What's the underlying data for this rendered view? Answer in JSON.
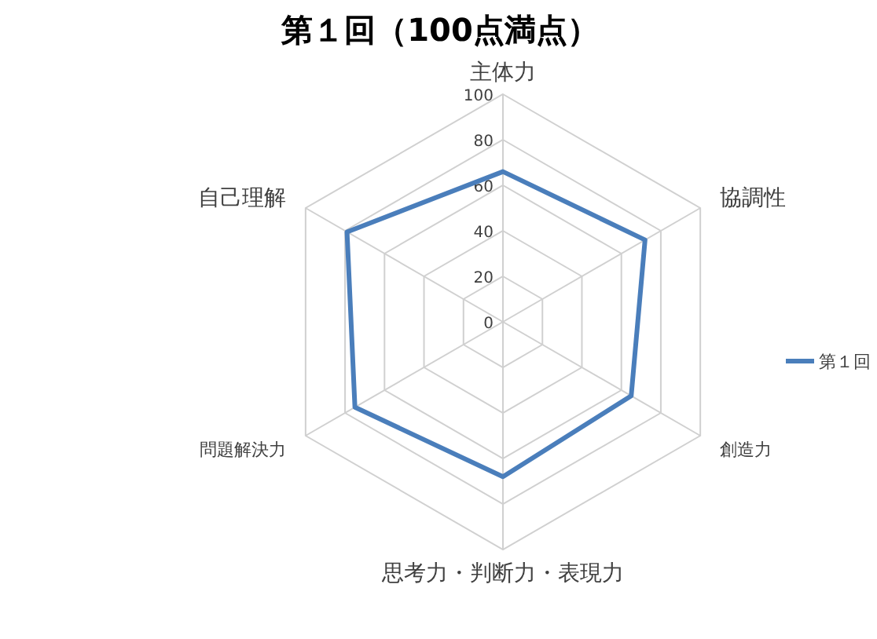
{
  "chart_data": {
    "type": "radar",
    "title": "第１回（100点満点）",
    "categories": [
      "主体力",
      "協調性",
      "創造力",
      "思考力・判断力・表現力",
      "問題解決力",
      "自己理解"
    ],
    "series": [
      {
        "name": "第１回",
        "color": "#4a7ebb",
        "values": [
          66,
          72,
          65,
          68,
          75,
          79
        ]
      }
    ],
    "ylim": [
      0,
      100
    ],
    "yticks": [
      0,
      20,
      40,
      60,
      80,
      100
    ],
    "legend": "right",
    "grid": true
  }
}
